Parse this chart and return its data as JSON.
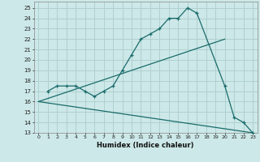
{
  "bg_color": "#cde8e8",
  "grid_color": "#b0d0d0",
  "line_color": "#1a6b6b",
  "xlim": [
    -0.5,
    23.5
  ],
  "ylim": [
    13,
    25.6
  ],
  "xticks": [
    0,
    1,
    2,
    3,
    4,
    5,
    6,
    7,
    8,
    9,
    10,
    11,
    12,
    13,
    14,
    15,
    16,
    17,
    18,
    19,
    20,
    21,
    22,
    23
  ],
  "yticks": [
    13,
    14,
    15,
    16,
    17,
    18,
    19,
    20,
    21,
    22,
    23,
    24,
    25
  ],
  "xlabel": "Humidex (Indice chaleur)",
  "line1_x": [
    1,
    2,
    3,
    4,
    5,
    6,
    7,
    8,
    9,
    10,
    11,
    12,
    13,
    14,
    15,
    16,
    17,
    20,
    21,
    22,
    23
  ],
  "line1_y": [
    17,
    17.5,
    17.5,
    17.5,
    17,
    16.5,
    17,
    17.5,
    19,
    20.5,
    22,
    22.5,
    23,
    24,
    24,
    25,
    24.5,
    17.5,
    14.5,
    14,
    13
  ],
  "line2_x": [
    0,
    20
  ],
  "line2_y": [
    16,
    22
  ],
  "line3_x": [
    0,
    23
  ],
  "line3_y": [
    16,
    13
  ]
}
